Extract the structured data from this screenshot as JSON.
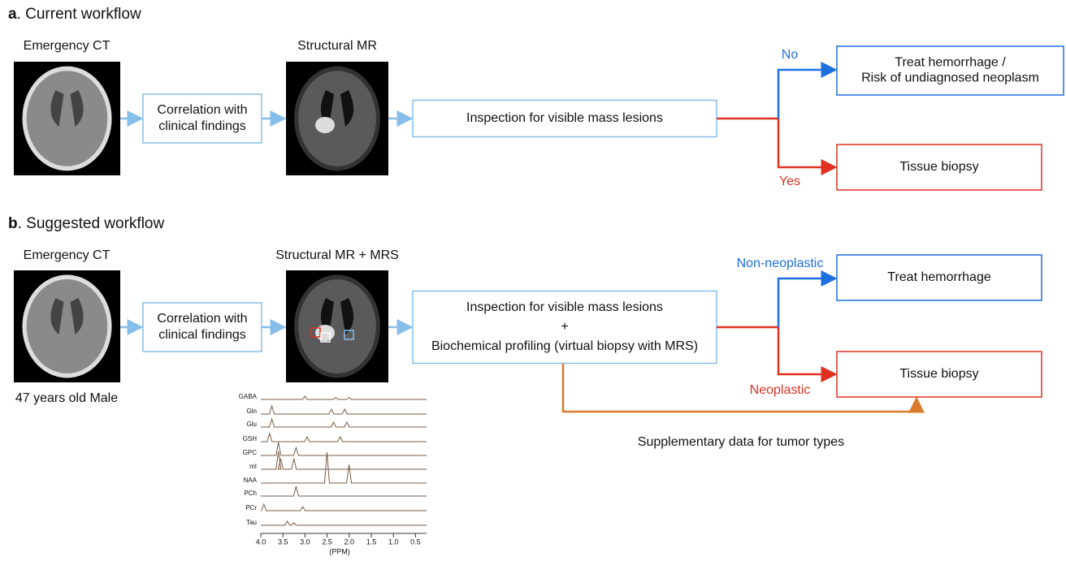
{
  "panels": [
    {
      "letter": "a",
      "title": ". Current workflow",
      "ct_label": "Emergency CT",
      "mr_label": "Structural MR",
      "correlation": [
        "Correlation with",
        "clinical findings"
      ],
      "inspection": [
        "Inspection for visible mass lesions"
      ],
      "branches": [
        {
          "label": "No",
          "outcome": [
            "Treat hemorrhage /",
            "Risk of undiagnosed neoplasm"
          ]
        },
        {
          "label": "Yes",
          "outcome": [
            "Tissue biopsy"
          ]
        }
      ]
    },
    {
      "letter": "b",
      "title": ". Suggested workflow",
      "ct_label": "Emergency CT",
      "mr_label": "Structural MR + MRS",
      "correlation": [
        "Correlation with",
        "clinical findings"
      ],
      "inspection": [
        "Inspection for visible mass lesions",
        "+",
        "Biochemical profiling (virtual biopsy with MRS)"
      ],
      "branches": [
        {
          "label": "Non-neoplastic",
          "outcome": [
            "Treat hemorrhage"
          ]
        },
        {
          "label": "Neoplastic",
          "outcome": [
            "Tissue biopsy"
          ]
        }
      ],
      "patient": "47 years old Male",
      "supplementary": "Supplementary data for tumor types",
      "spectrum": {
        "metabolites": [
          "GABA",
          "Gln",
          "Glu",
          "GSH",
          "GPC",
          "mI",
          "NAA",
          "PCh",
          "PCr",
          "Tau"
        ],
        "xticks": [
          "4.0",
          "3.5",
          "3.0",
          "2.5",
          "2.0",
          "1.5",
          "1.0",
          "0.5"
        ],
        "xlabel": "(PPM)"
      }
    }
  ]
}
